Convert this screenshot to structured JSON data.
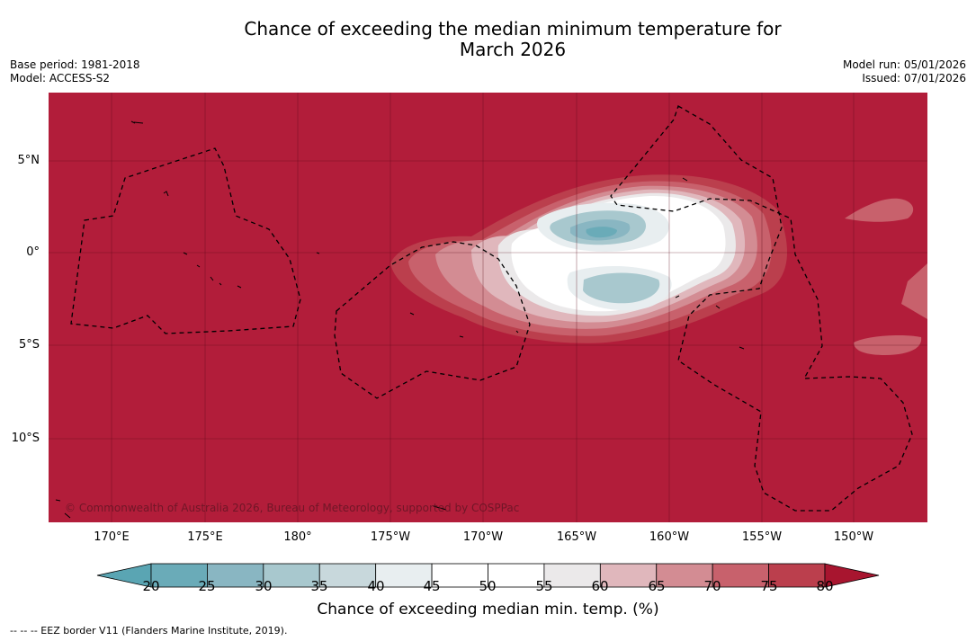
{
  "title": {
    "line1": "Chance of exceeding the median minimum temperature for",
    "line2": "March 2026"
  },
  "meta": {
    "base_period": "Base period: 1981-2018",
    "model": "Model: ACCESS-S2",
    "model_run": "Model run: 05/01/2026",
    "issued": "Issued: 07/01/2026"
  },
  "map": {
    "lat_labels": [
      "5°N",
      "0°",
      "5°S",
      "10°S"
    ],
    "lon_labels": [
      "170°E",
      "175°E",
      "180°",
      "175°W",
      "170°W",
      "165°W",
      "160°W",
      "155°W",
      "150°W"
    ],
    "copyright": "© Commonwealth of Australia 2026, Bureau of Meteorology, supported by COSPPac"
  },
  "legend": {
    "title": "Chance of exceeding median min. temp. (%)",
    "ticks": [
      "20",
      "25",
      "30",
      "35",
      "40",
      "45",
      "50",
      "55",
      "60",
      "65",
      "70",
      "75",
      "80"
    ],
    "colors": [
      "#6aabb8",
      "#89b6c2",
      "#a8c8ce",
      "#c8d8dc",
      "#e8eef0",
      "#ffffff",
      "#ffffff",
      "#ebe9ea",
      "#e0b7bc",
      "#d38c93",
      "#c8616c",
      "#bb3f4d"
    ],
    "under_color": "#5aa5b3",
    "over_color": "#a8152f"
  },
  "colors": {
    "background_high": "#b21d3a"
  },
  "footnote": "--  --  -- EEZ border V11 (Flanders Marine Institute, 2019)."
}
